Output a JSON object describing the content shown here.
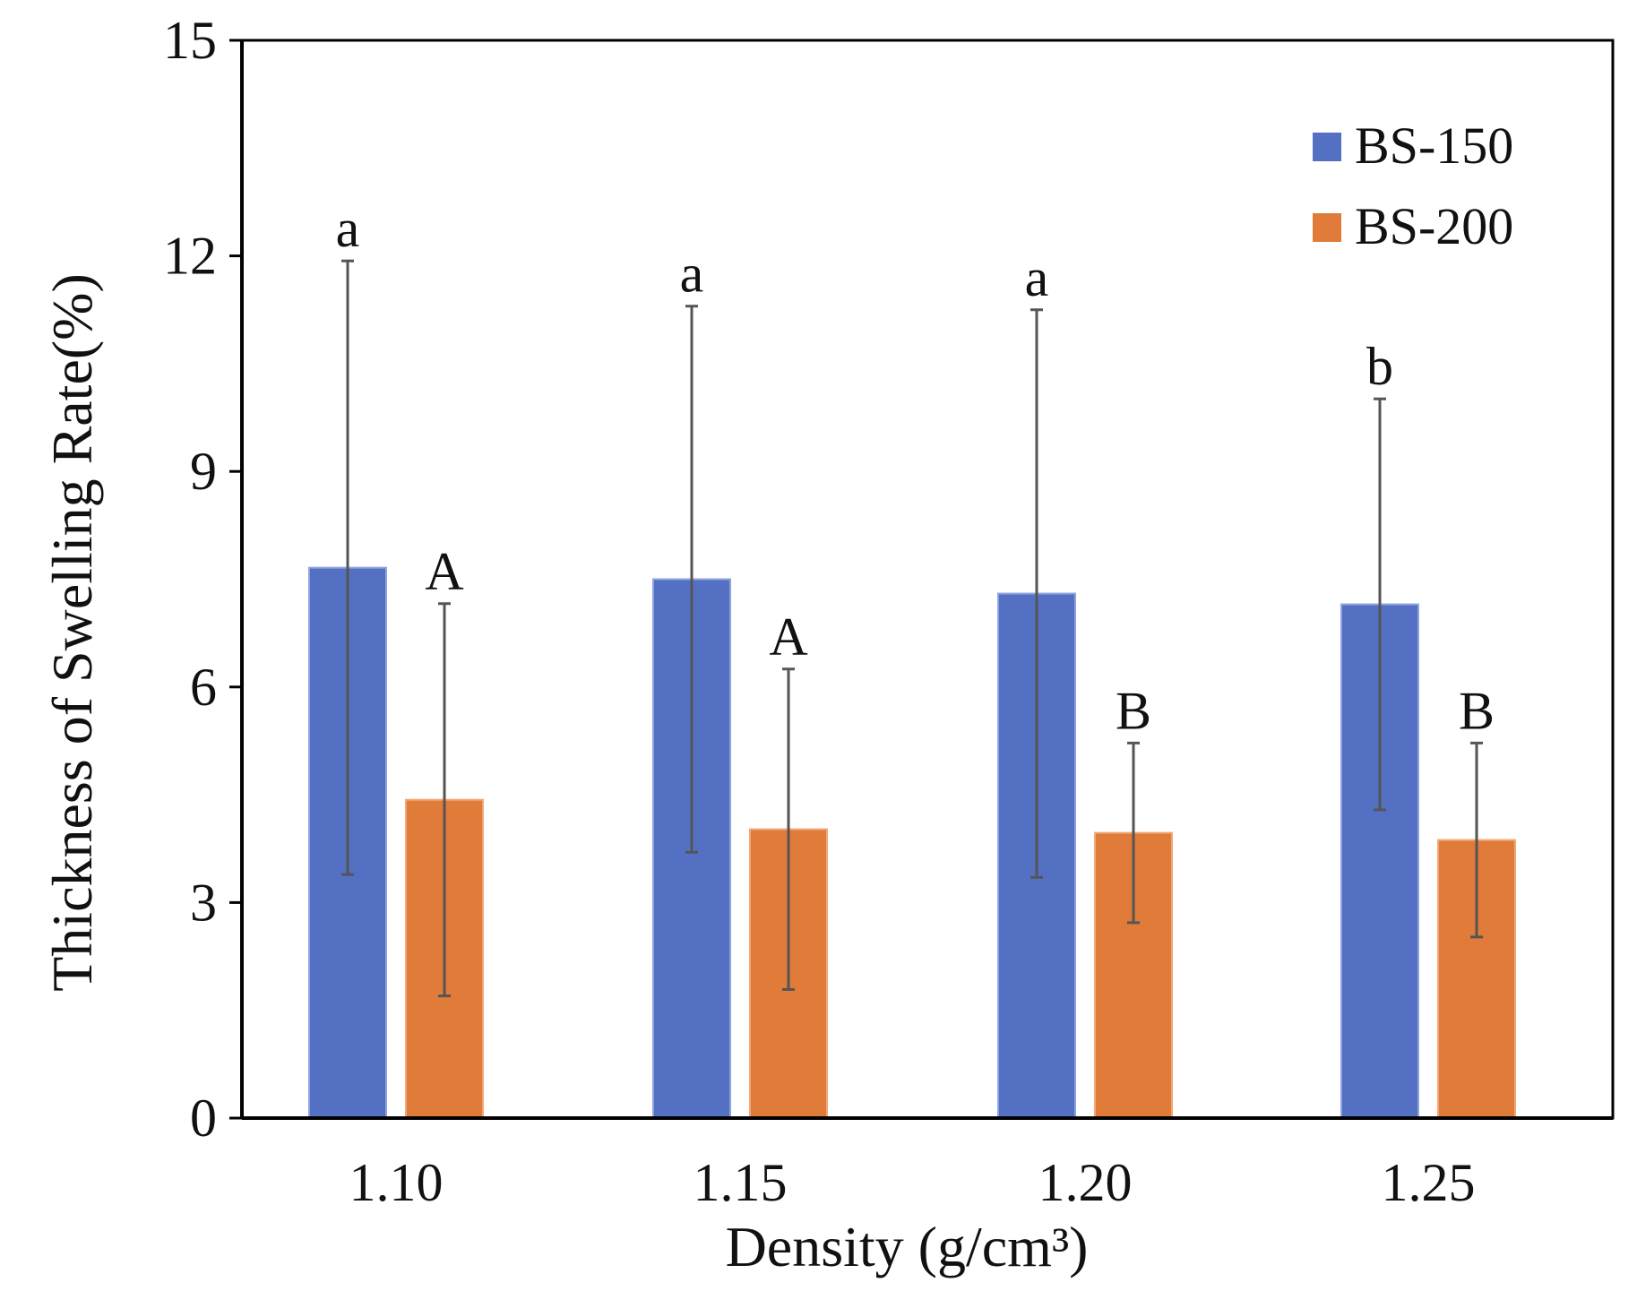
{
  "chart_data": {
    "type": "bar",
    "xlabel": "Density (g/cm³)",
    "ylabel": "Thickness of Swelling Rate(%)",
    "ylim": [
      0,
      15
    ],
    "yticks": [
      "0",
      "3",
      "6",
      "9",
      "12",
      "15"
    ],
    "categories": [
      "1.10",
      "1.15",
      "1.20",
      "1.25"
    ],
    "legend_position": "top-right",
    "series": [
      {
        "name": "BS-150",
        "color": "#5470C2",
        "values": [
          7.66,
          7.5,
          7.3,
          7.15
        ],
        "errors": [
          4.27,
          3.8,
          3.95,
          2.86
        ],
        "labels": [
          "a",
          "a",
          "a",
          "b"
        ]
      },
      {
        "name": "BS-200",
        "color": "#E07B39",
        "values": [
          4.43,
          4.02,
          3.97,
          3.87
        ],
        "errors": [
          2.73,
          2.23,
          1.25,
          1.35
        ],
        "labels": [
          "A",
          "A",
          "B",
          "B"
        ]
      }
    ]
  }
}
